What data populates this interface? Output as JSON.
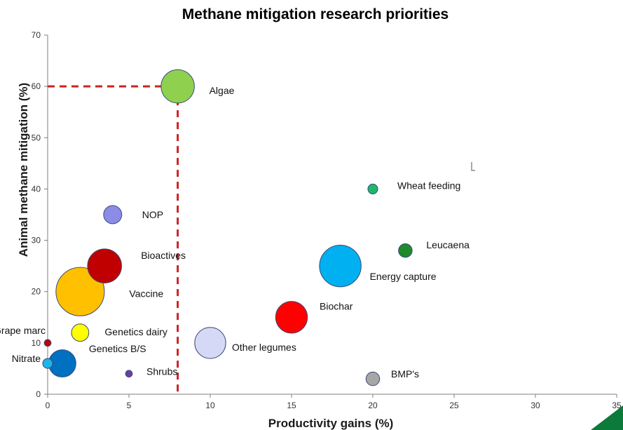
{
  "chart_data": {
    "type": "scatter",
    "title": "Methane mitigation research priorities",
    "xlabel": "Productivity gains (%)",
    "ylabel": "Animal methane mitigation (%)",
    "xlim": [
      0,
      35
    ],
    "ylim": [
      0,
      70
    ],
    "xticks": [
      "0",
      "5",
      "10",
      "15",
      "20",
      "25",
      "30",
      "35"
    ],
    "yticks": [
      "0",
      "10",
      "20",
      "30",
      "40",
      "50",
      "60",
      "70"
    ],
    "grid": false,
    "reference_lines": {
      "x": 8,
      "y": 60,
      "color": "#cc2222",
      "style": "dashed"
    },
    "points": [
      {
        "label": "Algae",
        "x": 8,
        "y": 60,
        "size": 4.4,
        "color": "#8fd14f"
      },
      {
        "label": "Wheat feeding",
        "x": 20,
        "y": 40,
        "size": 1.3,
        "color": "#1fb86a"
      },
      {
        "label": "NOP",
        "x": 4,
        "y": 35,
        "size": 2.4,
        "color": "#8a8ce6"
      },
      {
        "label": "Leucaena",
        "x": 22,
        "y": 28,
        "size": 1.8,
        "color": "#1e8a2c"
      },
      {
        "label": "Bioactives",
        "x": 3.5,
        "y": 25,
        "size": 4.5,
        "color": "#c00000"
      },
      {
        "label": "Energy capture",
        "x": 18,
        "y": 25,
        "size": 5.5,
        "color": "#00b0f0"
      },
      {
        "label": "Vaccine",
        "x": 2,
        "y": 20,
        "size": 6.4,
        "color": "#ffc000"
      },
      {
        "label": "Biochar",
        "x": 15,
        "y": 15,
        "size": 4.2,
        "color": "#ff0000"
      },
      {
        "label": "Genetics dairy",
        "x": 2,
        "y": 12,
        "size": 2.3,
        "color": "#ffff00"
      },
      {
        "label": "Grape marc",
        "x": 0,
        "y": 10,
        "size": 0.9,
        "color": "#c00000"
      },
      {
        "label": "Other legumes",
        "x": 10,
        "y": 10,
        "size": 4.1,
        "color": "#d6d9f5"
      },
      {
        "label": "Genetics B/S",
        "x": 0.9,
        "y": 6,
        "size": 3.6,
        "color": "#0070c0"
      },
      {
        "label": "Nitrate",
        "x": 0,
        "y": 6,
        "size": 1.3,
        "color": "#1fb4e6"
      },
      {
        "label": "Shrubs",
        "x": 5,
        "y": 4,
        "size": 0.9,
        "color": "#6a3ea1"
      },
      {
        "label": "BMP's",
        "x": 20,
        "y": 3,
        "size": 1.8,
        "color": "#a6a6a6"
      }
    ]
  }
}
